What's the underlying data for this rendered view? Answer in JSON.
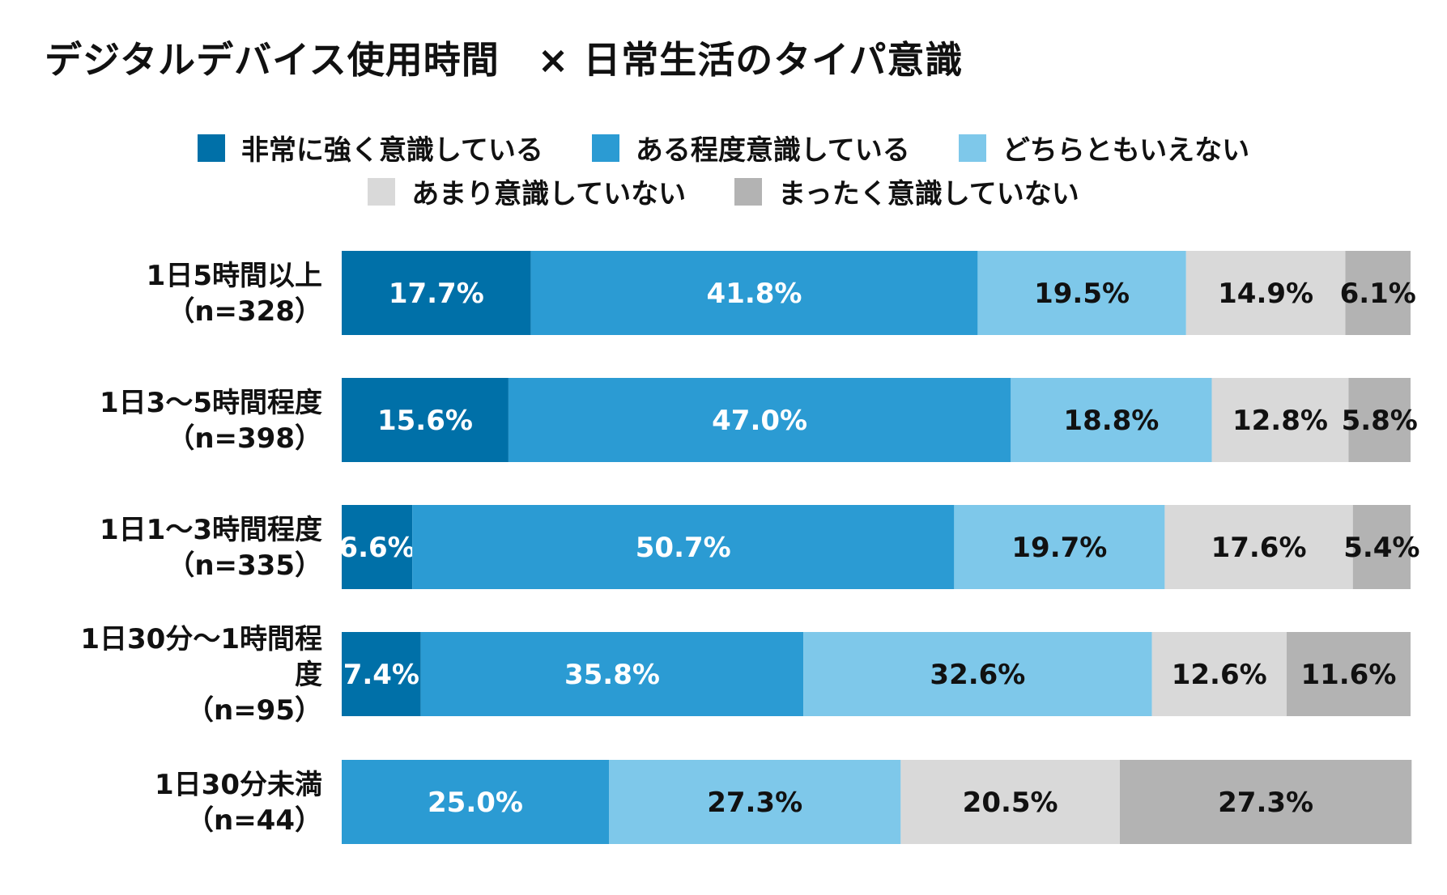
{
  "chart_data": {
    "type": "bar",
    "orientation": "horizontal",
    "stacked": true,
    "percent_stacked": true,
    "title": "デジタルデバイス使用時間　× 日常生活のタイパ意識",
    "categories": [
      [
        "1日5時間以上",
        "（n=328）"
      ],
      [
        "1日3～5時間程度",
        "（n=398）"
      ],
      [
        "1日1～3時間程度",
        "（n=335）"
      ],
      [
        "1日30分～1時間程",
        "度",
        "（n=95）"
      ],
      [
        "1日30分未満",
        "（n=44）"
      ]
    ],
    "series": [
      {
        "name": "非常に強く意識している",
        "color": "#0070A8",
        "label_color": "#ffffff",
        "values": [
          17.7,
          15.6,
          6.6,
          7.4,
          0
        ],
        "labels": [
          "17.7%",
          "15.6%",
          "6.6%",
          "7.4%",
          ""
        ]
      },
      {
        "name": "ある程度意識している",
        "color": "#2B9BD3",
        "label_color": "#ffffff",
        "values": [
          41.8,
          47.0,
          50.7,
          35.8,
          25.0
        ],
        "labels": [
          "41.8%",
          "47.0%",
          "50.7%",
          "35.8%",
          "25.0%"
        ]
      },
      {
        "name": "どちらともいえない",
        "color": "#7EC8EA",
        "label_color": "#111111",
        "values": [
          19.5,
          18.8,
          19.7,
          32.6,
          27.3
        ],
        "labels": [
          "19.5%",
          "18.8%",
          "19.7%",
          "32.6%",
          "27.3%"
        ]
      },
      {
        "name": "あまり意識していない",
        "color": "#D9D9D9",
        "label_color": "#111111",
        "values": [
          14.9,
          12.8,
          17.6,
          12.6,
          20.5
        ],
        "labels": [
          "14.9%",
          "12.8%",
          "17.6%",
          "12.6%",
          "20.5%"
        ]
      },
      {
        "name": "まったく意識していない",
        "color": "#B3B3B3",
        "label_color": "#111111",
        "values": [
          6.1,
          5.8,
          5.4,
          11.6,
          27.3
        ],
        "labels": [
          "6.1%",
          "5.8%",
          "5.4%",
          "11.6%",
          "27.3%"
        ]
      }
    ],
    "xlim": [
      0,
      100
    ],
    "legend": "top-center"
  }
}
